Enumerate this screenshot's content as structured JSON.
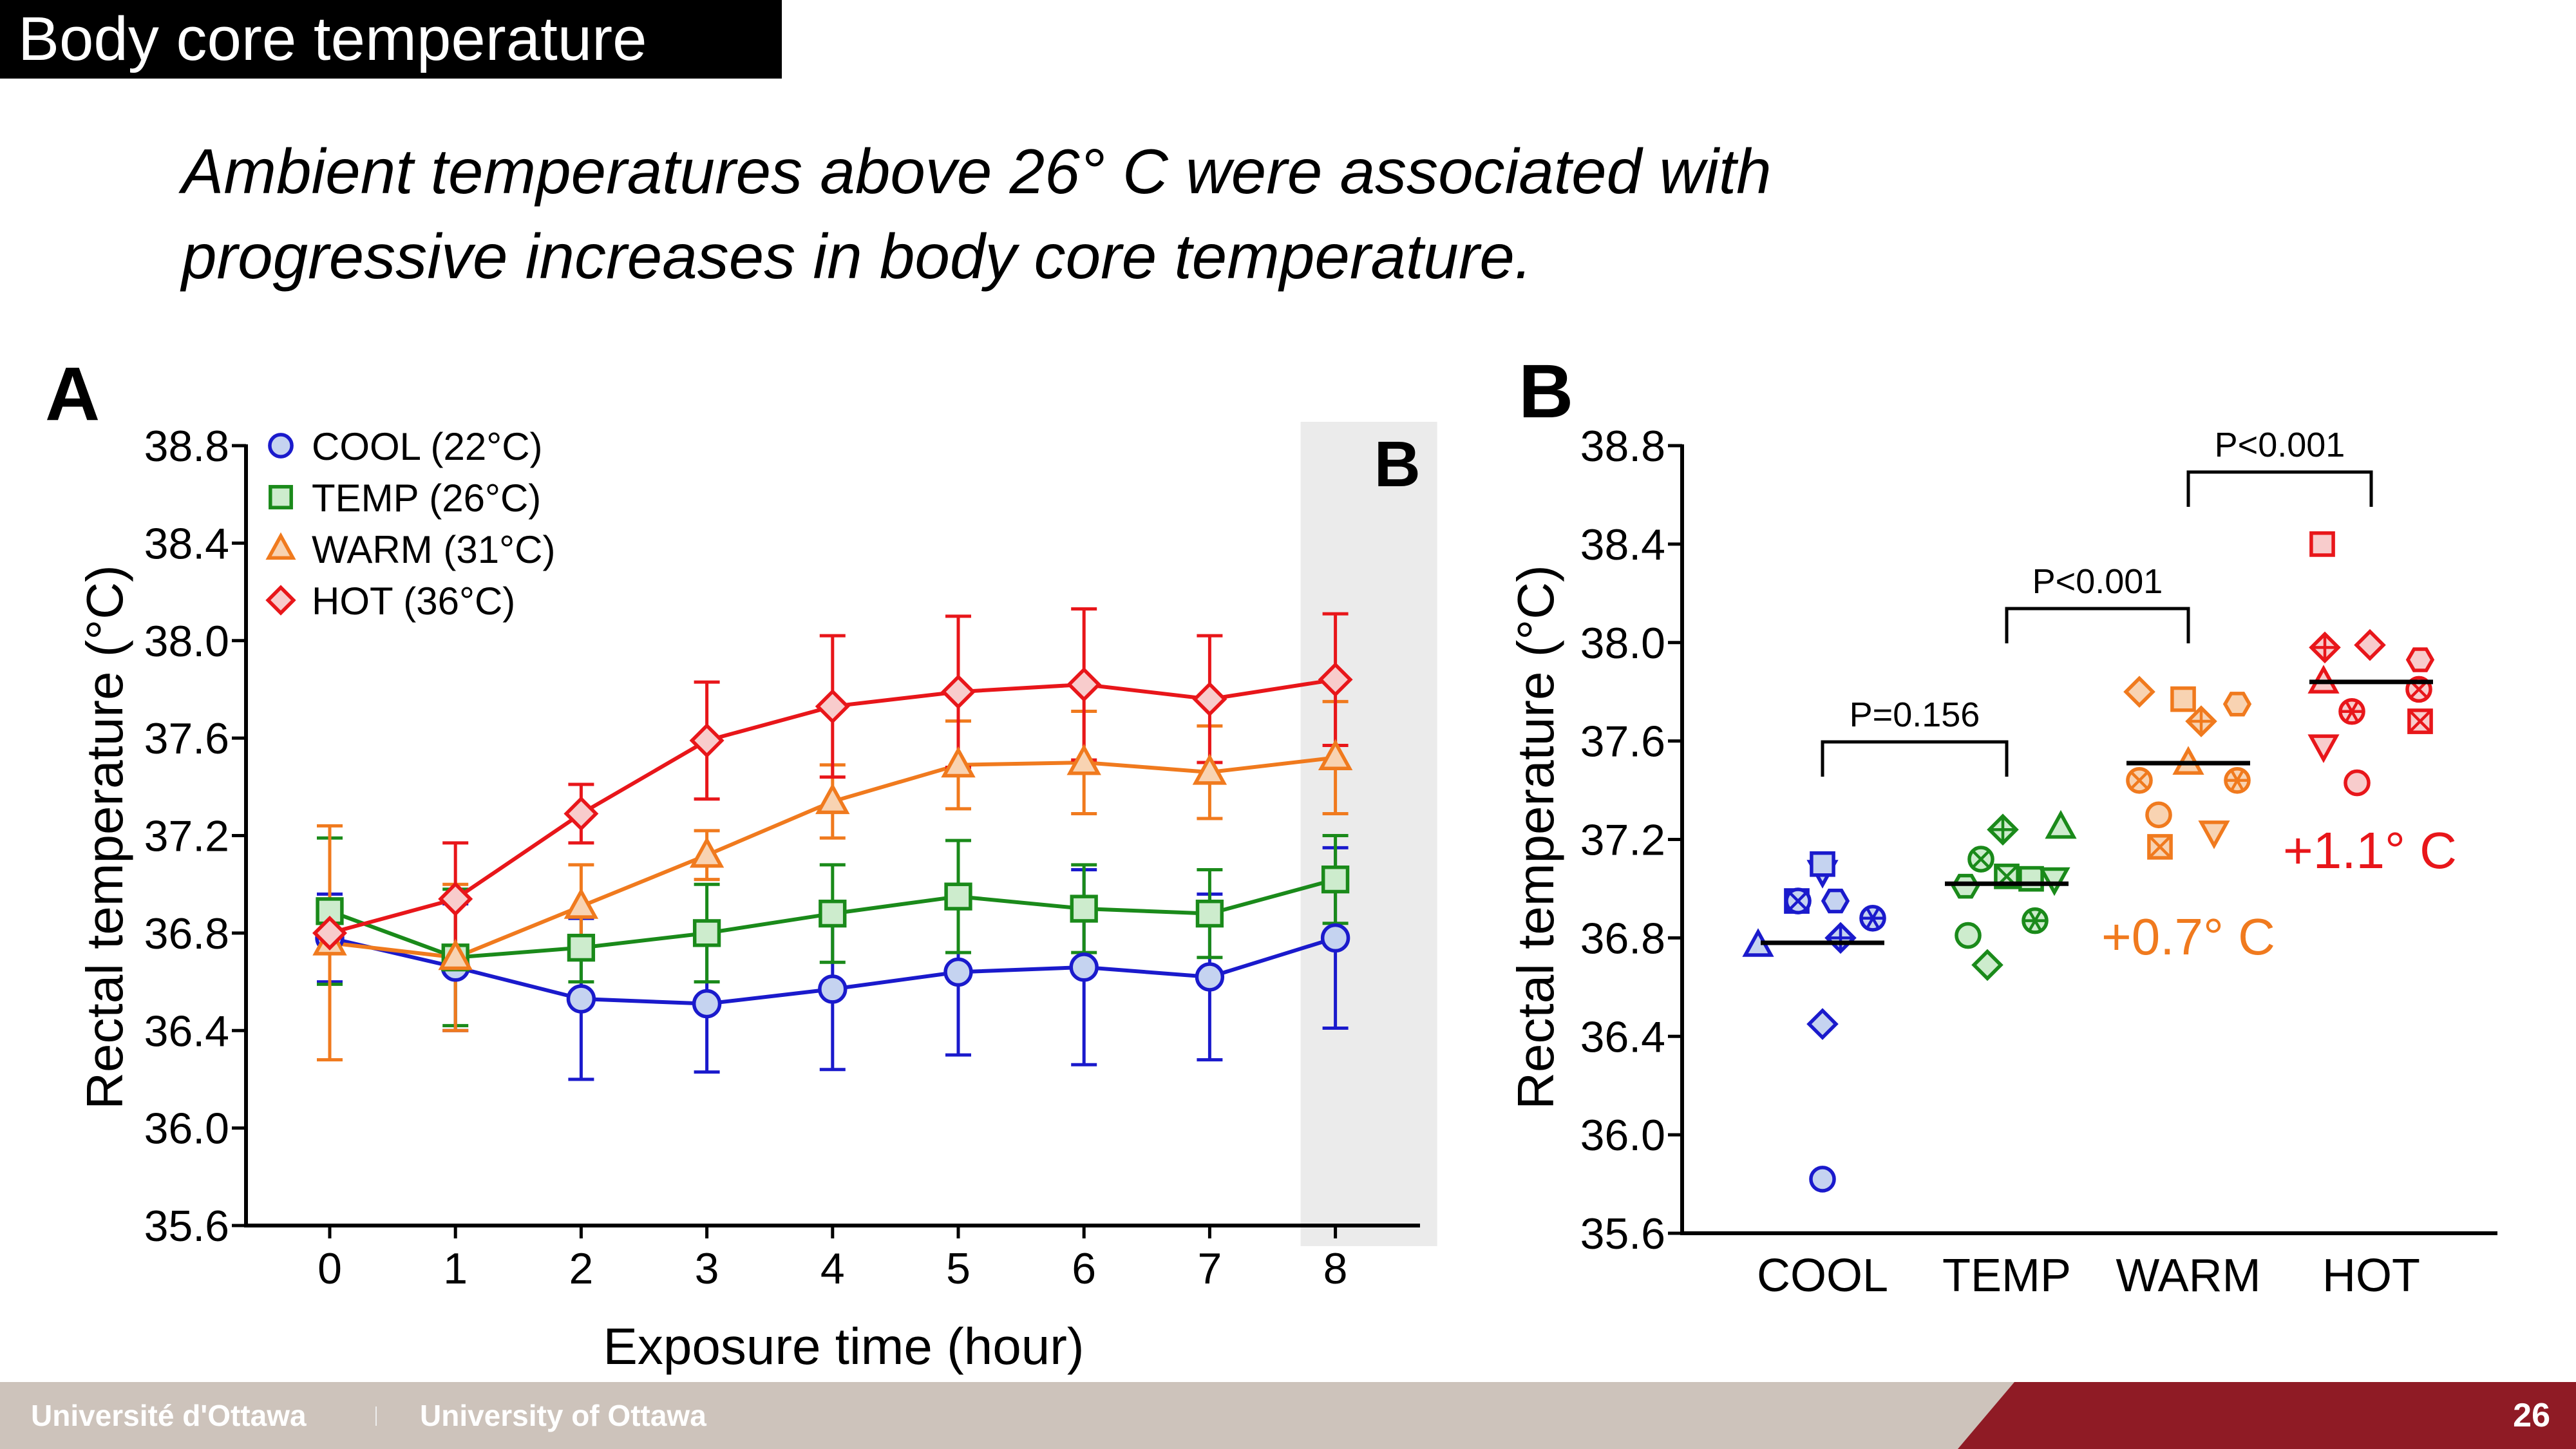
{
  "slide": {
    "title": "Body core temperature",
    "subtitle_line1": "Ambient temperatures above 26° C were associated with",
    "subtitle_line2": "progressive increases in body core temperature.",
    "page_number": "26",
    "footer_fr": "Université d'Ottawa",
    "footer_en": "University of Ottawa"
  },
  "colors": {
    "COOL": "#1a1acc",
    "TEMP": "#1a8a1a",
    "WARM": "#f07a1e",
    "HOT": "#e8161a"
  },
  "fills": {
    "COOL": "#c5d3f0",
    "TEMP": "#cdeccd",
    "WARM": "#f8d3b2",
    "HOT": "#f8cccc"
  },
  "chart_data": [
    {
      "type": "line",
      "panel_label": "A",
      "xlabel": "Exposure time (hour)",
      "ylabel": "Rectal temperature (°C)",
      "ylim": [
        35.6,
        38.8
      ],
      "yticks": [
        "35.6",
        "36.0",
        "36.4",
        "36.8",
        "37.2",
        "37.6",
        "38.0",
        "38.4",
        "38.8"
      ],
      "x": [
        0,
        1,
        2,
        3,
        4,
        5,
        6,
        7,
        8
      ],
      "highlight_label": "B",
      "highlight_x": 8,
      "legend_position": "top-left",
      "series": [
        {
          "name": "COOL (22°C)",
          "key": "COOL",
          "marker": "circle",
          "values": [
            36.78,
            36.66,
            36.53,
            36.51,
            36.57,
            36.64,
            36.66,
            36.62,
            36.78
          ],
          "errors": [
            0.18,
            0.26,
            0.33,
            0.28,
            0.33,
            0.34,
            0.4,
            0.34,
            0.37
          ]
        },
        {
          "name": "TEMP (26°C)",
          "key": "TEMP",
          "marker": "square",
          "values": [
            36.89,
            36.7,
            36.74,
            36.8,
            36.88,
            36.95,
            36.9,
            36.88,
            37.02
          ],
          "errors": [
            0.3,
            0.28,
            0.14,
            0.2,
            0.2,
            0.23,
            0.18,
            0.18,
            0.18
          ]
        },
        {
          "name": "WARM (31°C)",
          "key": "WARM",
          "marker": "triangle",
          "values": [
            36.76,
            36.7,
            36.91,
            37.12,
            37.34,
            37.49,
            37.5,
            37.46,
            37.52
          ],
          "errors": [
            0.48,
            0.3,
            0.17,
            0.1,
            0.15,
            0.18,
            0.21,
            0.19,
            0.23
          ]
        },
        {
          "name": "HOT (36°C)",
          "key": "HOT",
          "marker": "diamond",
          "values": [
            36.8,
            36.94,
            37.29,
            37.59,
            37.73,
            37.79,
            37.82,
            37.76,
            37.84
          ],
          "errors": [
            0.0,
            0.23,
            0.12,
            0.24,
            0.29,
            0.31,
            0.31,
            0.26,
            0.27
          ]
        }
      ]
    },
    {
      "type": "scatter",
      "panel_label": "B",
      "ylabel": "Rectal temperature (°C)",
      "ylim": [
        35.6,
        38.8
      ],
      "yticks": [
        "35.6",
        "36.0",
        "36.4",
        "36.8",
        "37.2",
        "37.6",
        "38.0",
        "38.4",
        "38.8"
      ],
      "categories": [
        "COOL",
        "TEMP",
        "WARM",
        "HOT"
      ],
      "means": [
        36.78,
        37.02,
        37.51,
        37.84
      ],
      "points": [
        {
          "group": "COOL",
          "value": 36.95,
          "marker": "boxx"
        },
        {
          "group": "COOL",
          "value": 37.07,
          "marker": "tri-down"
        },
        {
          "group": "COOL",
          "value": 36.95,
          "marker": "circx"
        },
        {
          "group": "COOL",
          "value": 36.95,
          "marker": "hexagon"
        },
        {
          "group": "COOL",
          "value": 37.1,
          "marker": "square"
        },
        {
          "group": "COOL",
          "value": 36.88,
          "marker": "circstar"
        },
        {
          "group": "COOL",
          "value": 36.77,
          "marker": "triangle"
        },
        {
          "group": "COOL",
          "value": 36.8,
          "marker": "diamplus"
        },
        {
          "group": "COOL",
          "value": 36.45,
          "marker": "diamond"
        },
        {
          "group": "COOL",
          "value": 35.82,
          "marker": "circle"
        },
        {
          "group": "TEMP",
          "value": 37.24,
          "marker": "diamplus"
        },
        {
          "group": "TEMP",
          "value": 37.25,
          "marker": "triangle"
        },
        {
          "group": "TEMP",
          "value": 37.12,
          "marker": "circx"
        },
        {
          "group": "TEMP",
          "value": 37.05,
          "marker": "boxx"
        },
        {
          "group": "TEMP",
          "value": 37.04,
          "marker": "square"
        },
        {
          "group": "TEMP",
          "value": 37.04,
          "marker": "tri-down"
        },
        {
          "group": "TEMP",
          "value": 37.01,
          "marker": "hexagon"
        },
        {
          "group": "TEMP",
          "value": 36.87,
          "marker": "circstar"
        },
        {
          "group": "TEMP",
          "value": 36.81,
          "marker": "circle"
        },
        {
          "group": "TEMP",
          "value": 36.69,
          "marker": "diamond"
        },
        {
          "group": "WARM",
          "value": 37.8,
          "marker": "diamond"
        },
        {
          "group": "WARM",
          "value": 37.77,
          "marker": "square"
        },
        {
          "group": "WARM",
          "value": 37.75,
          "marker": "hexagon"
        },
        {
          "group": "WARM",
          "value": 37.68,
          "marker": "diamplus"
        },
        {
          "group": "WARM",
          "value": 37.51,
          "marker": "triangle"
        },
        {
          "group": "WARM",
          "value": 37.44,
          "marker": "circx"
        },
        {
          "group": "WARM",
          "value": 37.44,
          "marker": "circstar"
        },
        {
          "group": "WARM",
          "value": 37.3,
          "marker": "circle"
        },
        {
          "group": "WARM",
          "value": 37.23,
          "marker": "tri-down"
        },
        {
          "group": "WARM",
          "value": 37.17,
          "marker": "boxx"
        },
        {
          "group": "HOT",
          "value": 38.4,
          "marker": "square"
        },
        {
          "group": "HOT",
          "value": 37.98,
          "marker": "diamplus"
        },
        {
          "group": "HOT",
          "value": 37.99,
          "marker": "diamond"
        },
        {
          "group": "HOT",
          "value": 37.93,
          "marker": "hexagon"
        },
        {
          "group": "HOT",
          "value": 37.84,
          "marker": "triangle"
        },
        {
          "group": "HOT",
          "value": 37.81,
          "marker": "circx"
        },
        {
          "group": "HOT",
          "value": 37.72,
          "marker": "circstar"
        },
        {
          "group": "HOT",
          "value": 37.68,
          "marker": "boxx"
        },
        {
          "group": "HOT",
          "value": 37.58,
          "marker": "tri-down"
        },
        {
          "group": "HOT",
          "value": 37.43,
          "marker": "circle"
        }
      ],
      "comparisons": [
        {
          "from": "COOL",
          "to": "TEMP",
          "label": "P=0.156"
        },
        {
          "from": "TEMP",
          "to": "WARM",
          "label": "P<0.001"
        },
        {
          "from": "WARM",
          "to": "HOT",
          "label": "P<0.001"
        }
      ],
      "annotations": [
        {
          "group": "WARM",
          "label": "+0.7° C"
        },
        {
          "group": "HOT",
          "label": "+1.1° C"
        }
      ]
    }
  ]
}
